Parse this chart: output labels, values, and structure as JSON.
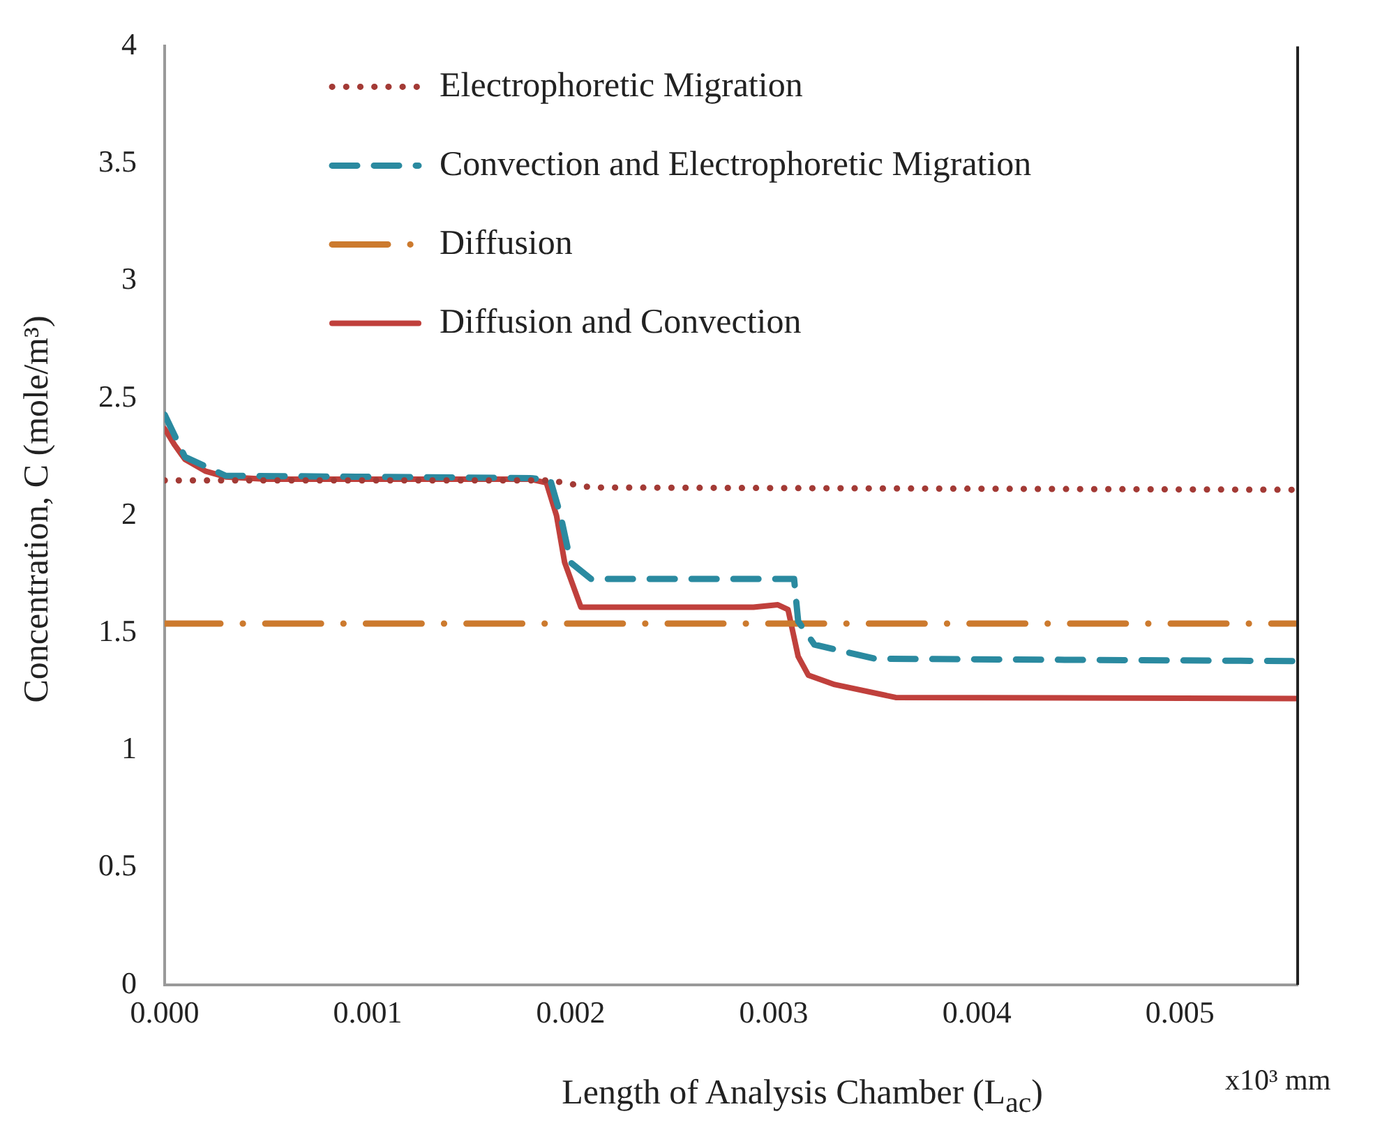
{
  "chart_data": {
    "type": "line",
    "xlabel": "Length of Analysis Chamber (L$_{ac}$)",
    "ylabel": "Concentration, C (mole/m³)",
    "annotations": [
      "x10³ mm"
    ],
    "xlim": [
      0,
      0.00558
    ],
    "xticks": [
      {
        "value": 0,
        "label": "0.000"
      },
      {
        "value": 0.001,
        "label": "0.001"
      },
      {
        "value": 0.002,
        "label": "0.002"
      },
      {
        "value": 0.003,
        "label": "0.003"
      },
      {
        "value": 0.004,
        "label": "0.004"
      },
      {
        "value": 0.005,
        "label": "0.005"
      }
    ],
    "ylim": [
      0,
      4
    ],
    "yticks": [
      0,
      0.5,
      1,
      1.5,
      2,
      2.5,
      3,
      3.5,
      4
    ],
    "grid": false,
    "legend": "top left",
    "marker": "none",
    "series": [
      {
        "name": "Electrophoretic Migration",
        "color": "#a33a35",
        "line_style": "dotted",
        "x": [
          0,
          0.0019,
          0.0021,
          0.00558
        ],
        "values": [
          2.15,
          2.15,
          2.12,
          2.11
        ]
      },
      {
        "name": "Convection and Electrophoretic Migration",
        "color": "#2a8aa0",
        "line_style": "dashed",
        "x": [
          0,
          0.0001,
          0.0003,
          0.0018,
          0.0019,
          0.00195,
          0.002,
          0.0021,
          0.0031,
          0.00312,
          0.0032,
          0.0035,
          0.00558
        ],
        "values": [
          2.43,
          2.25,
          2.17,
          2.16,
          2.15,
          2.0,
          1.8,
          1.73,
          1.73,
          1.55,
          1.45,
          1.39,
          1.38
        ]
      },
      {
        "name": "Diffusion",
        "color": "#cc7a2e",
        "line_style": "dashdot",
        "x": [
          0,
          0.00558
        ],
        "values": [
          1.54,
          1.54
        ]
      },
      {
        "name": "Diffusion and Convection",
        "color": "#c0403c",
        "line_style": "solid",
        "x": [
          0,
          5e-05,
          0.0001,
          0.0002,
          0.0003,
          0.0005,
          0.0018,
          0.00188,
          0.00193,
          0.00197,
          0.00205,
          0.0029,
          0.00302,
          0.00307,
          0.00312,
          0.00317,
          0.0033,
          0.0036,
          0.00558
        ],
        "values": [
          2.37,
          2.3,
          2.24,
          2.19,
          2.165,
          2.155,
          2.155,
          2.14,
          2.0,
          1.8,
          1.61,
          1.61,
          1.62,
          1.6,
          1.4,
          1.32,
          1.28,
          1.225,
          1.22
        ]
      }
    ]
  }
}
